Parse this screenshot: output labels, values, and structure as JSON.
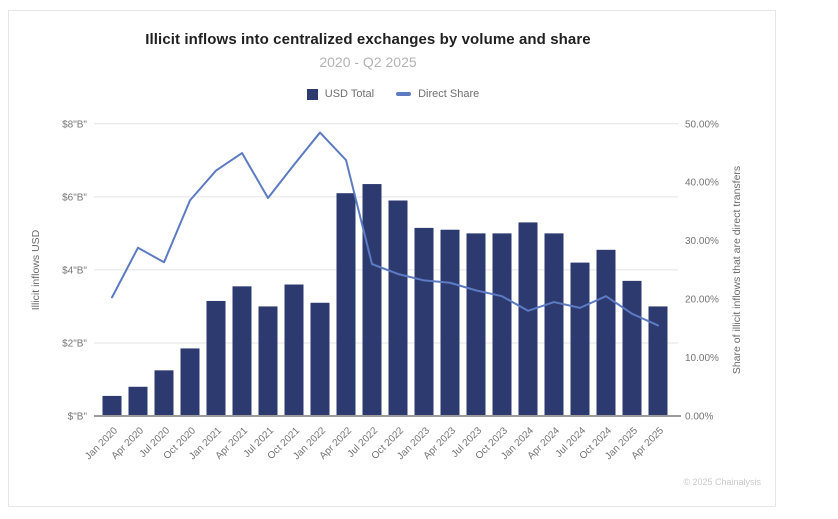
{
  "card": {
    "title": "Illicit inflows into centralized exchanges by volume and share",
    "subtitle": "2020 - Q2 2025",
    "copyright": "© 2025 Chainalysis"
  },
  "legend": {
    "items": [
      {
        "label": "USD Total",
        "swatch": "square",
        "color": "#2d3a70"
      },
      {
        "label": "Direct Share",
        "swatch": "line",
        "color": "#5d7bc2"
      }
    ]
  },
  "colors": {
    "bar": "#2d3a70",
    "line": "#5d7bc2",
    "gridline": "#e4e4e4",
    "axis_baseline": "#9b9b9b",
    "tick_text": "#757575",
    "axis_title_text": "#6b6b6b"
  },
  "chart_data": {
    "type": "bar",
    "combo": "bar+line",
    "title": "Illicit inflows into centralized exchanges by volume and share",
    "subtitle": "2020 - Q2 2025",
    "grid": "horizontal",
    "legend_position": "top",
    "categories": [
      "Jan 2020",
      "Apr 2020",
      "Jul 2020",
      "Oct 2020",
      "Jan 2021",
      "Apr 2021",
      "Jul 2021",
      "Oct 2021",
      "Jan 2022",
      "Apr 2022",
      "Jul 2022",
      "Oct 2022",
      "Jan 2023",
      "Apr 2023",
      "Jul 2023",
      "Oct 2023",
      "Jan 2024",
      "Apr 2024",
      "Jul 2024",
      "Oct 2024",
      "Jan 2025",
      "Apr 2025"
    ],
    "series": [
      {
        "name": "USD Total",
        "type": "bar",
        "axis": "left",
        "unit": "USD billions",
        "color": "#2d3a70",
        "values": [
          0.55,
          0.8,
          1.25,
          1.85,
          3.15,
          3.55,
          3.0,
          3.6,
          3.1,
          6.1,
          6.35,
          5.9,
          5.15,
          5.1,
          5.0,
          5.0,
          5.3,
          5.0,
          4.2,
          4.55,
          3.7,
          3.0
        ]
      },
      {
        "name": "Direct Share",
        "type": "line",
        "axis": "right",
        "unit": "percent",
        "color": "#5d7bc2",
        "values": [
          20.3,
          28.8,
          26.3,
          36.9,
          42.0,
          45.0,
          37.3,
          43.0,
          48.5,
          43.8,
          26.0,
          24.3,
          23.2,
          22.8,
          21.5,
          20.5,
          18.0,
          19.5,
          18.5,
          20.5,
          17.5,
          15.5
        ]
      }
    ],
    "left_axis": {
      "title": "Illicit inflows USD",
      "ticks": [
        "$\"B\"",
        "$2\"B\"",
        "$4\"B\"",
        "$6\"B\"",
        "$8\"B\""
      ],
      "tick_values": [
        0,
        2,
        4,
        6,
        8
      ],
      "range": [
        0,
        8
      ]
    },
    "right_axis": {
      "title": "Share of illicit inflows that are direct transfers",
      "ticks": [
        "0.00%",
        "10.00%",
        "20.00%",
        "30.00%",
        "40.00%",
        "50.00%"
      ],
      "tick_values": [
        0,
        10,
        20,
        30,
        40,
        50
      ],
      "range": [
        0,
        50
      ]
    }
  }
}
